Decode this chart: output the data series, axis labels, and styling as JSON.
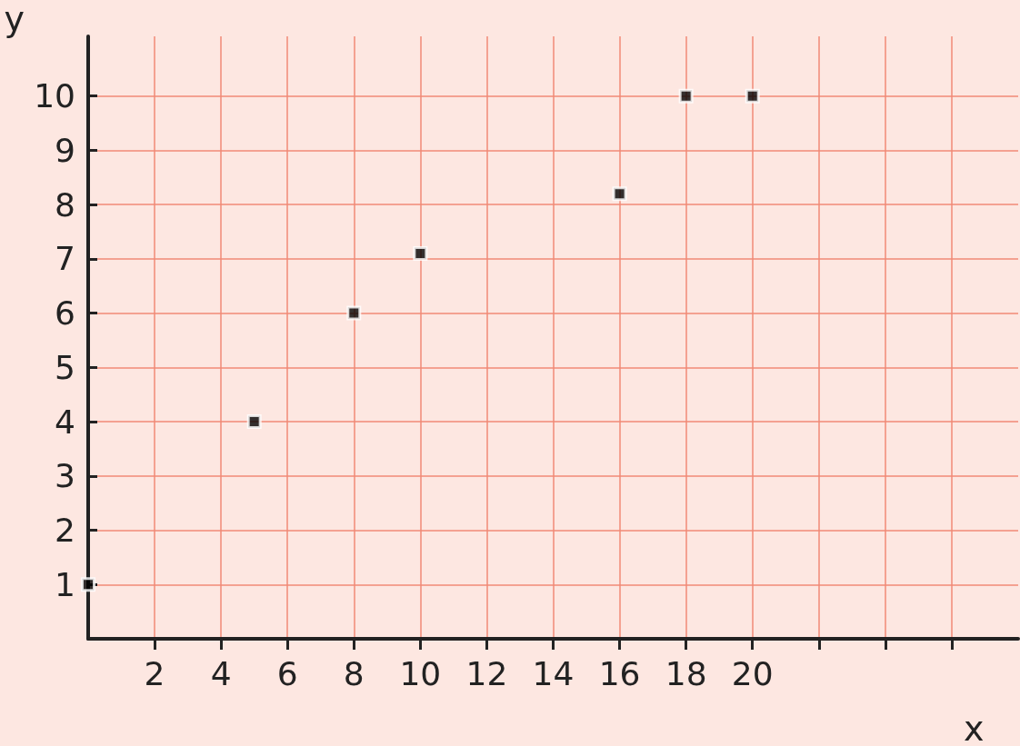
{
  "chart_data": {
    "type": "scatter",
    "xlabel": "x",
    "ylabel": "y",
    "x": [
      0,
      5,
      8,
      10,
      16,
      18,
      20
    ],
    "values": [
      1,
      4,
      6,
      7.1,
      8.2,
      10,
      10
    ],
    "color": "#000000",
    "marker": "square",
    "grid": true,
    "xlim": [
      0,
      28
    ],
    "xticks": [
      2,
      4,
      6,
      8,
      10,
      12,
      14,
      16,
      18,
      20,
      {
        "value": 22,
        "label": null
      },
      {
        "value": 24,
        "label": null
      },
      {
        "value": 26,
        "label": null
      }
    ],
    "ylim": [
      0,
      11.1
    ],
    "yticks": [
      1,
      2,
      3,
      4,
      5,
      6,
      7,
      8,
      9,
      10
    ]
  }
}
